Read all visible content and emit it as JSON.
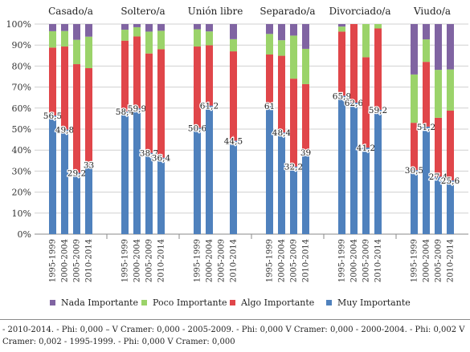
{
  "chart_data": {
    "type": "bar",
    "stacked": true,
    "groups": [
      {
        "name": "Casado/a",
        "segments": [
          [
            56.5,
            32.3,
            7.8,
            3.4
          ],
          [
            49.8,
            39.5,
            7.4,
            3.3
          ],
          [
            29.2,
            51.7,
            11.6,
            7.5
          ],
          [
            33,
            46,
            15,
            6
          ]
        ]
      },
      {
        "name": "Soltero/a",
        "segments": [
          [
            58.4,
            33.7,
            5.2,
            2.7
          ],
          [
            59.9,
            34.2,
            4.4,
            1.5
          ],
          [
            38.7,
            47.3,
            10.4,
            3.6
          ],
          [
            36.4,
            51.6,
            8.8,
            3.2
          ]
        ]
      },
      {
        "name": "Unión libre",
        "segments": [
          [
            50.6,
            38.7,
            8.2,
            2.5
          ],
          [
            61.2,
            28.7,
            6.6,
            3.5
          ],
          [
            0,
            0,
            0,
            0
          ],
          [
            44.5,
            42.5,
            5.8,
            7.2
          ]
        ]
      },
      {
        "name": "Separado/a",
        "segments": [
          [
            61,
            24.5,
            9.8,
            4.7
          ],
          [
            48.4,
            36.5,
            7.4,
            7.7
          ],
          [
            32.2,
            41.8,
            20.5,
            5.5
          ],
          [
            39,
            32.4,
            16.8,
            11.8
          ]
        ]
      },
      {
        "name": "Divorciado/a",
        "segments": [
          [
            65.9,
            30.5,
            2.4,
            1.2
          ],
          [
            62.6,
            37.4,
            0,
            0
          ],
          [
            41.2,
            43,
            15.8,
            0
          ],
          [
            59.2,
            38.7,
            2.1,
            0
          ]
        ]
      },
      {
        "name": "Viudo/a",
        "segments": [
          [
            30.5,
            22.5,
            23,
            24
          ],
          [
            51.2,
            30.8,
            10.7,
            7.3
          ],
          [
            27.4,
            28,
            22.8,
            21.8
          ],
          [
            25.6,
            33.2,
            19.6,
            21.6
          ]
        ]
      }
    ],
    "categories": [
      "1995-1999",
      "2000-2004",
      "2005-2009",
      "2010-2014"
    ],
    "value_labels": [
      [
        "56,5",
        "49,8",
        "29,2",
        "33"
      ],
      [
        "58,4",
        "59,9",
        "38,7",
        "36,4"
      ],
      [
        "50,6",
        "61,2",
        "",
        "44,5"
      ],
      [
        "61",
        "48,4",
        "32,2",
        "39"
      ],
      [
        "65,9",
        "62,6",
        "41,2",
        "59,2"
      ],
      [
        "30,5",
        "51,2",
        "27,4",
        "25,6"
      ]
    ],
    "series": [
      {
        "name": "Muy Importante",
        "color": "#4f81bd"
      },
      {
        "name": "Algo Importante",
        "color": "#e0464a"
      },
      {
        "name": "Poco Importante",
        "color": "#9bd36a"
      },
      {
        "name": "Nada Importante",
        "color": "#8064a2"
      }
    ],
    "legend_order": [
      "Nada Importante",
      "Poco Importante",
      "Algo Importante",
      "Muy Importante"
    ],
    "y_ticks": [
      "0%",
      "10%",
      "20%",
      "30%",
      "40%",
      "50%",
      "60%",
      "70%",
      "80%",
      "90%",
      "100%"
    ],
    "ylim": [
      0,
      100
    ],
    "grid": true,
    "legend_position": "bottom"
  },
  "footnote": "- 2010-2014. - Phi: 0,000 – V Cramer: 0,000 - 2005-2009. - Phi: 0,000 V Cramer: 0,000 - 2000-2004. - Phi: 0,002  V Cramer: 0,002 - 1995-1999. - Phi: 0,000 V Cramer: 0,000"
}
